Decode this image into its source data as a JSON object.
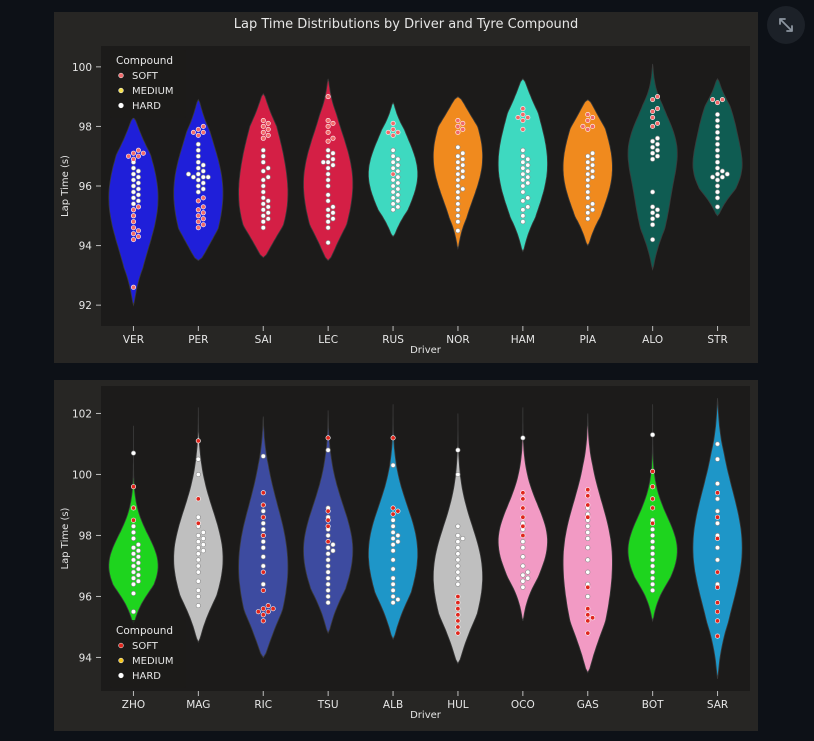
{
  "toolbar": {
    "expand_icon": "expand-diagonal-icon"
  },
  "chart_data": [
    {
      "type": "violin",
      "title": "Lap Time Distributions by Driver and Tyre Compound",
      "xlabel": "Driver",
      "ylabel": "Lap Time (s)",
      "ylim": [
        91.3,
        100.7
      ],
      "yticks": [
        92,
        94,
        96,
        98,
        100
      ],
      "grid": false,
      "legend": {
        "title": "Compound",
        "placement": "top-left",
        "entries": [
          {
            "label": "SOFT",
            "color": "#f06a6a"
          },
          {
            "label": "MEDIUM",
            "color": "#f5e04a"
          },
          {
            "label": "HARD",
            "color": "#ffffff"
          }
        ]
      },
      "categories": [
        "VER",
        "PER",
        "SAI",
        "LEC",
        "RUS",
        "NOR",
        "HAM",
        "PIA",
        "ALO",
        "STR"
      ],
      "colors": [
        "#1f1fd9",
        "#1f1fd9",
        "#d41f45",
        "#d41f45",
        "#3ed9c0",
        "#f08a1e",
        "#3ed9c0",
        "#f08a1e",
        "#0f5c52",
        "#0f5c52"
      ],
      "violins": [
        {
          "min": 92.0,
          "max": 98.3,
          "modes": [
            [
              95.6,
              1.0
            ]
          ],
          "spread": 1.7
        },
        {
          "min": 93.5,
          "max": 98.9,
          "modes": [
            [
              96.3,
              1.0
            ],
            [
              94.6,
              0.6
            ]
          ],
          "spread": 1.5
        },
        {
          "min": 93.6,
          "max": 99.1,
          "modes": [
            [
              95.2,
              0.9
            ],
            [
              97.3,
              0.6
            ]
          ],
          "spread": 1.3
        },
        {
          "min": 93.5,
          "max": 99.6,
          "modes": [
            [
              96.6,
              1.0
            ],
            [
              94.8,
              0.6
            ]
          ],
          "spread": 1.4
        },
        {
          "min": 94.3,
          "max": 98.8,
          "modes": [
            [
              96.4,
              1.0
            ]
          ],
          "spread": 1.2
        },
        {
          "min": 93.9,
          "max": 99.0,
          "modes": [
            [
              96.6,
              1.0
            ],
            [
              98.0,
              0.5
            ]
          ],
          "spread": 1.3
        },
        {
          "min": 93.8,
          "max": 99.6,
          "modes": [
            [
              96.4,
              1.0
            ],
            [
              98.3,
              0.4
            ]
          ],
          "spread": 1.4
        },
        {
          "min": 94.0,
          "max": 98.9,
          "modes": [
            [
              96.3,
              1.0
            ],
            [
              98.0,
              0.4
            ]
          ],
          "spread": 1.3
        },
        {
          "min": 93.2,
          "max": 100.1,
          "modes": [
            [
              97.3,
              1.0
            ],
            [
              95.1,
              0.55
            ]
          ],
          "spread": 1.1
        },
        {
          "min": 95.0,
          "max": 99.6,
          "modes": [
            [
              96.5,
              1.0
            ],
            [
              98.2,
              0.6
            ]
          ],
          "spread": 0.9
        }
      ],
      "points": [
        {
          "soft": [
            92.6,
            94.2,
            94.3,
            94.4,
            94.5,
            94.6,
            94.8,
            95.0,
            95.2,
            95.3,
            96.9,
            97.0,
            97.0,
            97.1,
            97.1,
            97.2
          ],
          "hard": [
            94.8,
            95.0,
            95.2,
            95.3,
            95.4,
            95.5,
            95.6,
            95.7,
            95.8,
            95.9,
            96.0,
            96.1,
            96.2,
            96.3,
            96.4,
            96.5,
            96.6,
            96.8
          ]
        },
        {
          "soft": [
            94.6,
            94.7,
            94.8,
            94.9,
            95.0,
            95.1,
            95.2,
            95.3,
            95.5,
            95.6,
            97.7,
            97.8,
            97.8,
            97.9,
            98.0
          ],
          "hard": [
            95.8,
            95.9,
            96.0,
            96.1,
            96.2,
            96.3,
            96.3,
            96.3,
            96.4,
            96.4,
            96.5,
            96.6,
            96.7,
            96.8,
            97.0,
            97.2,
            97.4
          ]
        },
        {
          "soft": [
            97.6,
            97.7,
            97.8,
            97.9,
            98.0,
            98.1,
            98.2
          ],
          "hard": [
            94.6,
            94.8,
            94.9,
            95.0,
            95.1,
            95.2,
            95.3,
            95.4,
            95.5,
            95.6,
            95.8,
            96.0,
            96.2,
            96.3,
            96.5,
            96.6,
            96.8,
            97.0,
            97.2
          ]
        },
        {
          "soft": [
            97.5,
            97.6,
            97.8,
            98.0,
            98.1,
            98.2,
            99.0
          ],
          "hard": [
            94.1,
            94.6,
            94.8,
            94.9,
            95.0,
            95.1,
            95.2,
            95.3,
            95.5,
            95.7,
            96.0,
            96.2,
            96.4,
            96.6,
            96.7,
            96.8,
            96.8,
            96.9,
            97.0,
            97.1,
            97.2
          ]
        },
        {
          "soft": [
            97.7,
            97.8,
            97.8,
            97.9,
            98.1,
            96.4
          ],
          "hard": [
            95.2,
            95.3,
            95.4,
            95.5,
            95.6,
            95.7,
            95.8,
            95.9,
            96.0,
            96.1,
            96.2,
            96.3,
            96.4,
            96.5,
            96.6,
            96.7,
            96.8,
            96.9,
            97.0,
            97.2
          ]
        },
        {
          "soft": [
            97.8,
            97.9,
            98.0,
            98.1,
            98.2
          ],
          "hard": [
            94.5,
            94.8,
            95.0,
            95.2,
            95.4,
            95.6,
            95.8,
            95.9,
            96.0,
            96.2,
            96.3,
            96.4,
            96.5,
            96.6,
            96.7,
            96.8,
            96.9,
            97.0,
            97.1,
            97.3
          ]
        },
        {
          "soft": [
            97.9,
            98.2,
            98.3,
            98.3,
            98.4,
            98.6
          ],
          "hard": [
            94.8,
            95.0,
            95.2,
            95.3,
            95.5,
            95.6,
            95.8,
            96.0,
            96.1,
            96.2,
            96.3,
            96.4,
            96.5,
            96.6,
            96.7,
            96.8,
            96.9,
            97.0,
            97.2
          ]
        },
        {
          "soft": [
            97.9,
            98.0,
            98.0,
            98.2,
            98.3,
            98.4
          ],
          "hard": [
            94.9,
            95.1,
            95.2,
            95.3,
            95.4,
            95.6,
            95.8,
            96.0,
            96.2,
            96.3,
            96.4,
            96.5,
            96.6,
            96.7,
            96.8,
            96.9,
            97.0,
            97.1
          ]
        },
        {
          "soft": [
            98.0,
            98.1,
            98.3,
            98.5,
            98.6,
            98.9,
            99.0
          ],
          "hard": [
            94.2,
            94.7,
            94.9,
            95.0,
            95.1,
            95.2,
            95.3,
            95.8,
            96.9,
            97.0,
            97.1,
            97.2,
            97.3,
            97.4,
            97.5,
            97.6
          ]
        },
        {
          "soft": [
            98.8,
            98.9,
            98.9
          ],
          "hard": [
            95.3,
            95.6,
            95.8,
            96.0,
            96.2,
            96.3,
            96.3,
            96.4,
            96.4,
            96.5,
            96.6,
            96.8,
            97.0,
            97.2,
            97.4,
            97.6,
            97.8,
            98.0,
            98.2,
            98.4
          ]
        }
      ]
    },
    {
      "type": "violin",
      "title": "",
      "xlabel": "Driver",
      "ylabel": "Lap Time (s)",
      "ylim": [
        92.9,
        102.9
      ],
      "yticks": [
        94,
        96,
        98,
        100,
        102
      ],
      "grid": false,
      "legend": {
        "title": "Compound",
        "placement": "bottom-left",
        "entries": [
          {
            "label": "SOFT",
            "color": "#e0261c"
          },
          {
            "label": "MEDIUM",
            "color": "#f5c518"
          },
          {
            "label": "HARD",
            "color": "#ffffff"
          }
        ]
      },
      "categories": [
        "ZHO",
        "MAG",
        "RIC",
        "TSU",
        "ALB",
        "HUL",
        "OCO",
        "GAS",
        "BOT",
        "SAR"
      ],
      "colors": [
        "#1ed41e",
        "#bfbfbf",
        "#3d4ba0",
        "#3d4ba0",
        "#1e96c8",
        "#bfbfbf",
        "#f29ac4",
        "#f29ac4",
        "#1ed41e",
        "#1e96c8"
      ],
      "violins": [
        {
          "min": 95.1,
          "max": 101.6,
          "modes": [
            [
              97.0,
              1.0
            ]
          ],
          "spread": 1.0
        },
        {
          "min": 94.5,
          "max": 102.2,
          "modes": [
            [
              97.8,
              1.0
            ],
            [
              96.5,
              0.8
            ]
          ],
          "spread": 1.4
        },
        {
          "min": 94.0,
          "max": 101.9,
          "modes": [
            [
              97.8,
              1.0
            ],
            [
              95.8,
              0.8
            ]
          ],
          "spread": 1.6
        },
        {
          "min": 94.8,
          "max": 102.1,
          "modes": [
            [
              97.5,
              1.0
            ]
          ],
          "spread": 1.5
        },
        {
          "min": 94.6,
          "max": 102.3,
          "modes": [
            [
              97.9,
              1.0
            ],
            [
              96.3,
              0.6
            ]
          ],
          "spread": 1.3
        },
        {
          "min": 93.8,
          "max": 102.0,
          "modes": [
            [
              97.1,
              1.0
            ],
            [
              95.3,
              0.5
            ]
          ],
          "spread": 1.4
        },
        {
          "min": 95.2,
          "max": 102.2,
          "modes": [
            [
              97.8,
              1.0
            ]
          ],
          "spread": 1.2
        },
        {
          "min": 93.5,
          "max": 102.0,
          "modes": [
            [
              97.8,
              1.0
            ],
            [
              95.4,
              0.7
            ]
          ],
          "spread": 1.5
        },
        {
          "min": 95.2,
          "max": 102.3,
          "modes": [
            [
              97.5,
              1.0
            ]
          ],
          "spread": 1.1
        },
        {
          "min": 93.3,
          "max": 102.5,
          "modes": [
            [
              97.6,
              1.0
            ]
          ],
          "spread": 1.9
        }
      ],
      "points": [
        {
          "soft": [
            98.5,
            99.6,
            98.9
          ],
          "hard": [
            95.5,
            96.1,
            96.4,
            96.5,
            96.6,
            96.7,
            96.8,
            96.9,
            97.0,
            97.1,
            97.2,
            97.3,
            97.4,
            97.5,
            97.6,
            97.7,
            97.9,
            98.1,
            98.3,
            100.7
          ]
        },
        {
          "soft": [
            98.4,
            99.2,
            101.1
          ],
          "hard": [
            95.7,
            96.0,
            96.2,
            96.5,
            96.8,
            97.0,
            97.2,
            97.4,
            97.5,
            97.6,
            97.7,
            97.8,
            97.9,
            98.0,
            98.1,
            98.3,
            98.6,
            100.0,
            100.5
          ]
        },
        {
          "soft": [
            95.2,
            95.4,
            95.5,
            95.5,
            95.6,
            95.6,
            95.7,
            96.2,
            96.8,
            98.0,
            98.6,
            99.0,
            99.4
          ],
          "hard": [
            96.4,
            97.0,
            97.3,
            97.6,
            97.8,
            98.0,
            98.2,
            98.4,
            98.6,
            98.8,
            99.0,
            100.6
          ]
        },
        {
          "soft": [
            97.8,
            98.3,
            98.5,
            98.8,
            101.2
          ],
          "hard": [
            95.8,
            96.0,
            96.2,
            96.4,
            96.6,
            96.8,
            97.0,
            97.2,
            97.4,
            97.5,
            97.6,
            97.7,
            97.8,
            98.0,
            98.2,
            98.6,
            98.9,
            100.8
          ]
        },
        {
          "soft": [
            98.7,
            98.8,
            98.9,
            101.2
          ],
          "hard": [
            95.8,
            95.9,
            96.0,
            96.2,
            96.4,
            96.6,
            96.9,
            97.2,
            97.5,
            97.7,
            97.8,
            97.9,
            98.0,
            98.1,
            98.3,
            98.5,
            98.7,
            100.3
          ]
        },
        {
          "soft": [
            94.8,
            95.0,
            95.2,
            95.4,
            95.6,
            95.8,
            96.0
          ],
          "hard": [
            96.4,
            96.6,
            96.8,
            97.0,
            97.2,
            97.4,
            97.6,
            97.8,
            97.9,
            98.0,
            98.3,
            100.0,
            100.8
          ]
        },
        {
          "soft": [
            98.0,
            98.3,
            98.6,
            98.9,
            99.2,
            99.4
          ],
          "hard": [
            96.3,
            96.5,
            96.6,
            96.7,
            96.8,
            97.0,
            97.3,
            97.6,
            97.8,
            98.0,
            98.2,
            98.4,
            98.6,
            101.2
          ]
        },
        {
          "soft": [
            94.8,
            95.2,
            95.3,
            95.4,
            95.6,
            96.3,
            98.6,
            99.0,
            99.3,
            99.5
          ],
          "hard": [
            96.0,
            96.4,
            96.8,
            97.2,
            97.6,
            97.9,
            98.1,
            98.3,
            98.5,
            98.7,
            98.9
          ]
        },
        {
          "soft": [
            98.4,
            98.9,
            99.2,
            99.6,
            100.1
          ],
          "hard": [
            96.2,
            96.4,
            96.6,
            96.8,
            97.0,
            97.2,
            97.4,
            97.6,
            97.8,
            98.0,
            98.2,
            98.5,
            101.3
          ]
        },
        {
          "soft": [
            94.7,
            95.2,
            95.5,
            95.8,
            96.3,
            96.8,
            97.9,
            98.6,
            99.4
          ],
          "hard": [
            95.8,
            96.4,
            96.8,
            97.2,
            97.6,
            98.0,
            98.4,
            98.8,
            99.2,
            99.7,
            100.5,
            101.0
          ]
        }
      ]
    }
  ]
}
